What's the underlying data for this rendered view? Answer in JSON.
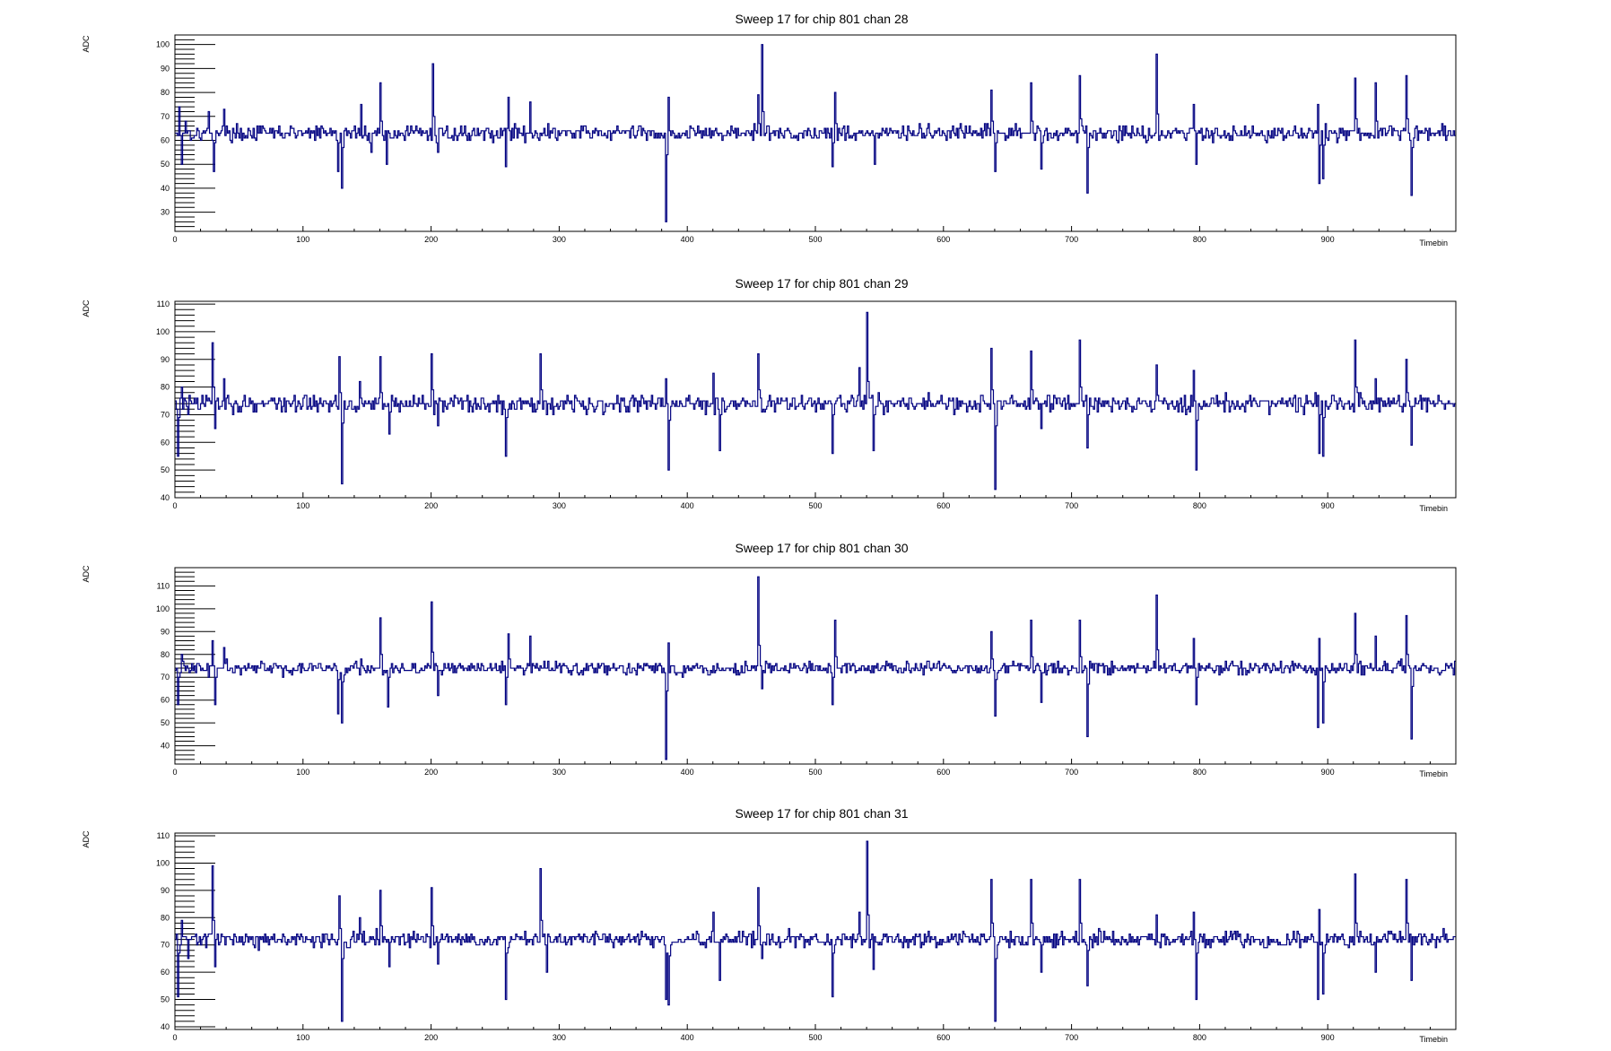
{
  "chart_data": [
    {
      "type": "line",
      "title": "Sweep 17 for chip 801 chan 28",
      "xlabel": "Timebin",
      "ylabel": "ADC",
      "xlim": [
        0,
        1000
      ],
      "ylim": [
        22,
        104
      ],
      "x_ticks": [
        0,
        100,
        200,
        300,
        400,
        500,
        600,
        700,
        800,
        900
      ],
      "y_ticks": [
        30,
        40,
        50,
        60,
        70,
        80,
        90,
        100
      ],
      "baseline": 63,
      "noise": 1.6,
      "color": "#000080",
      "features": [
        [
          3,
          74
        ],
        [
          5,
          50
        ],
        [
          8,
          68
        ],
        [
          26,
          72
        ],
        [
          30,
          47
        ],
        [
          38,
          73
        ],
        [
          127,
          47
        ],
        [
          130,
          40
        ],
        [
          145,
          75
        ],
        [
          153,
          55
        ],
        [
          160,
          84
        ],
        [
          165,
          50
        ],
        [
          201,
          92
        ],
        [
          205,
          55
        ],
        [
          258,
          49
        ],
        [
          260,
          78
        ],
        [
          277,
          76
        ],
        [
          383,
          26
        ],
        [
          385,
          78
        ],
        [
          455,
          79
        ],
        [
          458,
          100
        ],
        [
          513,
          49
        ],
        [
          515,
          80
        ],
        [
          546,
          50
        ],
        [
          637,
          81
        ],
        [
          640,
          47
        ],
        [
          668,
          84
        ],
        [
          676,
          48
        ],
        [
          706,
          87
        ],
        [
          712,
          38
        ],
        [
          766,
          96
        ],
        [
          795,
          75
        ],
        [
          797,
          50
        ],
        [
          892,
          75
        ],
        [
          893,
          42
        ],
        [
          896,
          44
        ],
        [
          921,
          86
        ],
        [
          937,
          84
        ],
        [
          961,
          87
        ],
        [
          965,
          37
        ]
      ]
    },
    {
      "type": "line",
      "title": "Sweep 17 for chip 801 chan 29",
      "xlabel": "Timebin",
      "ylabel": "ADC",
      "xlim": [
        0,
        1000
      ],
      "ylim": [
        40,
        111
      ],
      "x_ticks": [
        0,
        100,
        200,
        300,
        400,
        500,
        600,
        700,
        800,
        900
      ],
      "y_ticks": [
        40,
        50,
        60,
        70,
        80,
        90,
        100,
        110
      ],
      "baseline": 74,
      "noise": 1.6,
      "color": "#000080",
      "features": [
        [
          2,
          55
        ],
        [
          5,
          80
        ],
        [
          10,
          70
        ],
        [
          29,
          96
        ],
        [
          31,
          65
        ],
        [
          38,
          83
        ],
        [
          128,
          91
        ],
        [
          130,
          45
        ],
        [
          144,
          82
        ],
        [
          160,
          91
        ],
        [
          167,
          63
        ],
        [
          200,
          92
        ],
        [
          205,
          66
        ],
        [
          258,
          55
        ],
        [
          285,
          92
        ],
        [
          290,
          70
        ],
        [
          383,
          83
        ],
        [
          385,
          50
        ],
        [
          420,
          85
        ],
        [
          425,
          57
        ],
        [
          455,
          92
        ],
        [
          458,
          71
        ],
        [
          513,
          56
        ],
        [
          534,
          87
        ],
        [
          540,
          107
        ],
        [
          545,
          57
        ],
        [
          637,
          94
        ],
        [
          640,
          43
        ],
        [
          668,
          93
        ],
        [
          676,
          65
        ],
        [
          706,
          97
        ],
        [
          712,
          58
        ],
        [
          766,
          88
        ],
        [
          795,
          86
        ],
        [
          797,
          50
        ],
        [
          892,
          77
        ],
        [
          893,
          56
        ],
        [
          896,
          55
        ],
        [
          921,
          97
        ],
        [
          937,
          83
        ],
        [
          961,
          90
        ],
        [
          965,
          59
        ]
      ]
    },
    {
      "type": "line",
      "title": "Sweep 17 for chip 801 chan 30",
      "xlabel": "Timebin",
      "ylabel": "ADC",
      "xlim": [
        0,
        1000
      ],
      "ylim": [
        32,
        118
      ],
      "x_ticks": [
        0,
        100,
        200,
        300,
        400,
        500,
        600,
        700,
        800,
        900
      ],
      "y_ticks": [
        40,
        50,
        60,
        70,
        80,
        90,
        100,
        110
      ],
      "baseline": 74,
      "noise": 1.4,
      "color": "#000080",
      "features": [
        [
          2,
          58
        ],
        [
          5,
          80
        ],
        [
          26,
          70
        ],
        [
          29,
          86
        ],
        [
          31,
          58
        ],
        [
          38,
          83
        ],
        [
          127,
          54
        ],
        [
          130,
          50
        ],
        [
          145,
          78
        ],
        [
          160,
          96
        ],
        [
          166,
          57
        ],
        [
          200,
          103
        ],
        [
          205,
          62
        ],
        [
          258,
          58
        ],
        [
          260,
          89
        ],
        [
          277,
          88
        ],
        [
          383,
          34
        ],
        [
          385,
          85
        ],
        [
          455,
          114
        ],
        [
          458,
          65
        ],
        [
          513,
          58
        ],
        [
          515,
          95
        ],
        [
          637,
          90
        ],
        [
          640,
          53
        ],
        [
          668,
          95
        ],
        [
          676,
          59
        ],
        [
          706,
          95
        ],
        [
          712,
          44
        ],
        [
          766,
          106
        ],
        [
          795,
          87
        ],
        [
          797,
          58
        ],
        [
          892,
          48
        ],
        [
          893,
          87
        ],
        [
          896,
          50
        ],
        [
          921,
          98
        ],
        [
          937,
          88
        ],
        [
          961,
          97
        ],
        [
          965,
          43
        ]
      ]
    },
    {
      "type": "line",
      "title": "Sweep 17 for chip 801 chan 31",
      "xlabel": "Timebin",
      "ylabel": "ADC",
      "xlim": [
        0,
        1000
      ],
      "ylim": [
        39,
        111
      ],
      "x_ticks": [
        0,
        100,
        200,
        300,
        400,
        500,
        600,
        700,
        800,
        900
      ],
      "y_ticks": [
        40,
        50,
        60,
        70,
        80,
        90,
        100,
        110
      ],
      "baseline": 72,
      "noise": 1.4,
      "color": "#000080",
      "features": [
        [
          2,
          51
        ],
        [
          5,
          79
        ],
        [
          10,
          65
        ],
        [
          29,
          99
        ],
        [
          31,
          62
        ],
        [
          38,
          73
        ],
        [
          128,
          88
        ],
        [
          130,
          42
        ],
        [
          144,
          80
        ],
        [
          160,
          90
        ],
        [
          167,
          62
        ],
        [
          200,
          91
        ],
        [
          205,
          63
        ],
        [
          258,
          50
        ],
        [
          285,
          98
        ],
        [
          290,
          60
        ],
        [
          383,
          50
        ],
        [
          385,
          48
        ],
        [
          420,
          82
        ],
        [
          425,
          57
        ],
        [
          455,
          91
        ],
        [
          458,
          65
        ],
        [
          513,
          51
        ],
        [
          534,
          82
        ],
        [
          540,
          108
        ],
        [
          545,
          61
        ],
        [
          637,
          94
        ],
        [
          640,
          42
        ],
        [
          668,
          94
        ],
        [
          676,
          60
        ],
        [
          706,
          94
        ],
        [
          712,
          55
        ],
        [
          766,
          81
        ],
        [
          795,
          82
        ],
        [
          797,
          50
        ],
        [
          892,
          50
        ],
        [
          893,
          83
        ],
        [
          896,
          52
        ],
        [
          921,
          96
        ],
        [
          937,
          60
        ],
        [
          961,
          94
        ],
        [
          965,
          57
        ]
      ]
    }
  ]
}
